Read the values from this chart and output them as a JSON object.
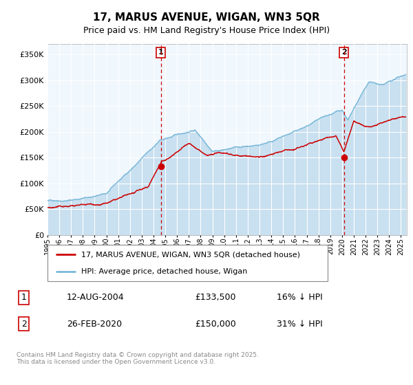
{
  "title": "17, MARUS AVENUE, WIGAN, WN3 5QR",
  "subtitle": "Price paid vs. HM Land Registry's House Price Index (HPI)",
  "hpi_color": "#7ab8d9",
  "hpi_fill_color": "#c8e0f0",
  "price_color": "#cc0000",
  "plot_bg": "#f0f7fd",
  "grid_color": "#d0d8e0",
  "vline_color": "#cc0000",
  "ylim": [
    0,
    370000
  ],
  "yticks": [
    0,
    50000,
    100000,
    150000,
    200000,
    250000,
    300000,
    350000
  ],
  "transaction1": {
    "date_num": 2004.617,
    "price": 133500,
    "label": "1",
    "date_str": "12-AUG-2004",
    "pct": "16% ↓ HPI"
  },
  "transaction2": {
    "date_num": 2020.154,
    "price": 150000,
    "label": "2",
    "date_str": "26-FEB-2020",
    "pct": "31% ↓ HPI"
  },
  "legend_line1": "17, MARUS AVENUE, WIGAN, WN3 5QR (detached house)",
  "legend_line2": "HPI: Average price, detached house, Wigan",
  "footer": "Contains HM Land Registry data © Crown copyright and database right 2025.\nThis data is licensed under the Open Government Licence v3.0.",
  "xmin": 1995.0,
  "xmax": 2025.5
}
